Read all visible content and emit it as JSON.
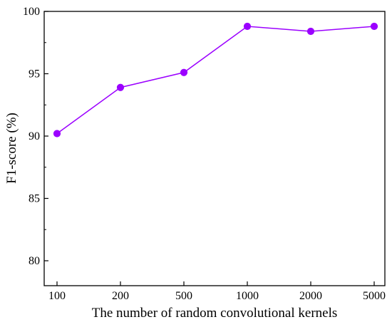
{
  "chart_data": {
    "type": "line",
    "title": "",
    "xlabel": "The number of random convolutional kernels",
    "ylabel": "F1-score (%)",
    "categories": [
      "100",
      "200",
      "500",
      "1000",
      "2000",
      "5000"
    ],
    "series": [
      {
        "values": [
          90.2,
          93.9,
          95.1,
          98.8,
          98.4,
          98.8
        ]
      }
    ],
    "ylim": [
      78,
      100
    ],
    "yticks": [
      "80",
      "85",
      "90",
      "95",
      "100"
    ],
    "grid": false,
    "legend": "none",
    "colors": {
      "line": "#9b00ff",
      "marker": "#9b00ff",
      "axis": "#000000"
    }
  }
}
